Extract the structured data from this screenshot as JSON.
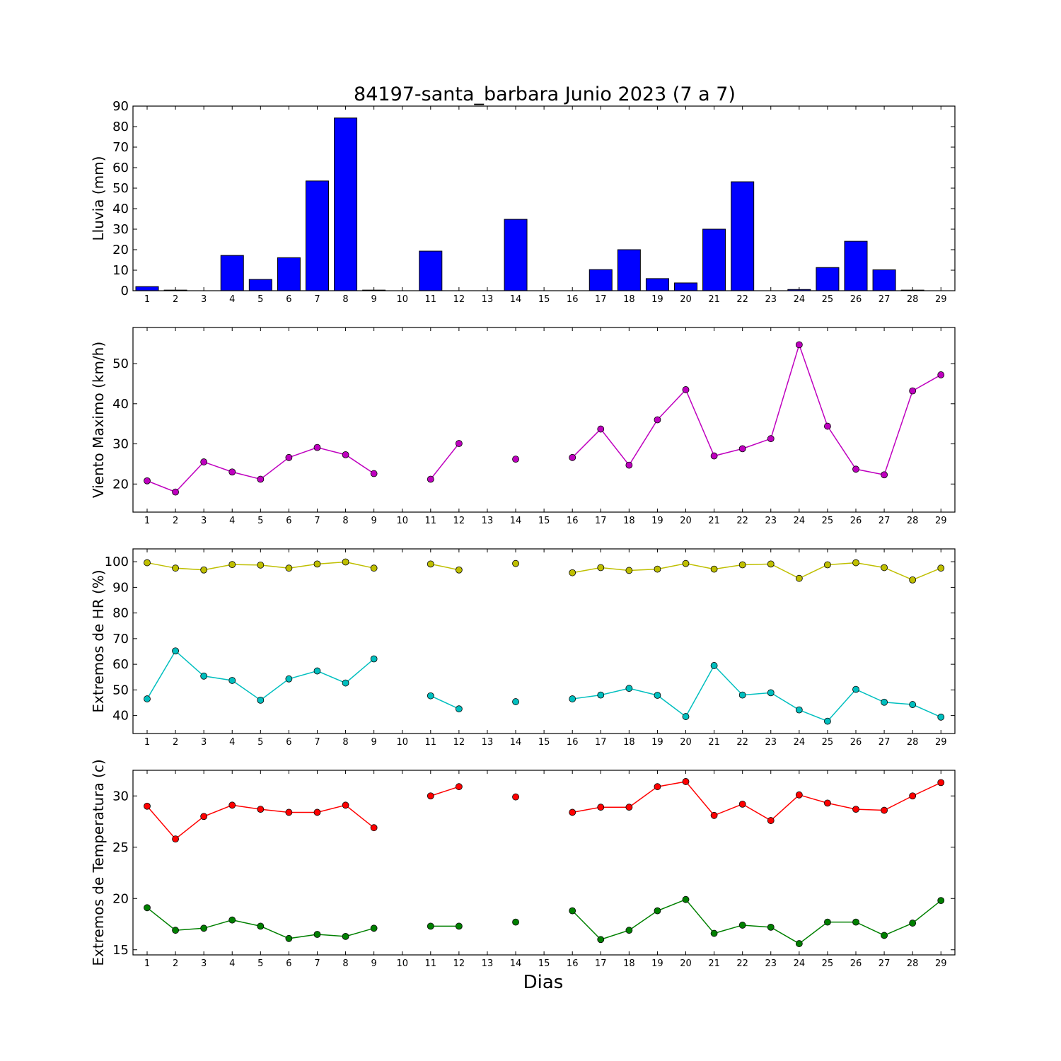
{
  "chart_data": [
    {
      "type": "bar",
      "title": "84197-santa_barbara Junio 2023  (7 a 7)",
      "ylabel": "Lluvia (mm)",
      "xlabel": "",
      "ylim": [
        0,
        90
      ],
      "yticks": [
        0,
        10,
        20,
        30,
        40,
        50,
        60,
        70,
        80,
        90
      ],
      "categories": [
        "1",
        "2",
        "3",
        "4",
        "5",
        "6",
        "7",
        "8",
        "9",
        "10",
        "11",
        "12",
        "13",
        "14",
        "15",
        "16",
        "17",
        "18",
        "19",
        "20",
        "21",
        "22",
        "23",
        "24",
        "25",
        "26",
        "27",
        "28",
        "29"
      ],
      "values": [
        2.0,
        0.3,
        0,
        17.2,
        5.5,
        16.1,
        53.5,
        84.2,
        0.3,
        0,
        19.3,
        0,
        0,
        34.8,
        0,
        0,
        10.3,
        20.0,
        5.9,
        3.8,
        30.0,
        53.1,
        0,
        0.6,
        11.3,
        24.1,
        10.2,
        0.3,
        0
      ],
      "colors": {
        "bar": "#0000ff"
      }
    },
    {
      "type": "line",
      "ylabel": "Viento Maximo (km/h)",
      "ylim": [
        13,
        59
      ],
      "yticks": [
        20,
        30,
        40,
        50
      ],
      "x": [
        1,
        2,
        3,
        4,
        5,
        6,
        7,
        8,
        9,
        10,
        11,
        12,
        13,
        14,
        15,
        16,
        17,
        18,
        19,
        20,
        21,
        22,
        23,
        24,
        25,
        26,
        27,
        28,
        29
      ],
      "series": [
        {
          "values": [
            20.8,
            18.0,
            25.5,
            23.0,
            21.2,
            26.6,
            29.1,
            27.3,
            22.6,
            null,
            21.2,
            30.1,
            null,
            26.2,
            null,
            26.6,
            33.7,
            24.7,
            36.0,
            43.5,
            27.0,
            28.8,
            31.3,
            54.7,
            34.4,
            23.7,
            22.3,
            43.2,
            47.2
          ],
          "color": "#bf00bf"
        }
      ]
    },
    {
      "type": "line",
      "ylabel": "Extremos de HR (%)",
      "ylim": [
        33,
        105
      ],
      "yticks": [
        40,
        50,
        60,
        70,
        80,
        90,
        100
      ],
      "x": [
        1,
        2,
        3,
        4,
        5,
        6,
        7,
        8,
        9,
        10,
        11,
        12,
        13,
        14,
        15,
        16,
        17,
        18,
        19,
        20,
        21,
        22,
        23,
        24,
        25,
        26,
        27,
        28,
        29
      ],
      "series": [
        {
          "values": [
            99.6,
            97.5,
            96.8,
            98.9,
            98.7,
            97.5,
            99.1,
            99.9,
            97.5,
            null,
            99.1,
            96.8,
            null,
            99.3,
            null,
            95.7,
            97.7,
            96.6,
            97.1,
            99.3,
            97.1,
            98.8,
            99.1,
            93.5,
            98.8,
            99.6,
            97.7,
            92.9,
            97.5
          ],
          "color": "#bfbf00"
        },
        {
          "values": [
            46.5,
            65.2,
            55.4,
            53.7,
            46.0,
            54.3,
            57.4,
            52.7,
            62.1,
            null,
            47.7,
            42.6,
            null,
            45.4,
            null,
            46.5,
            48.0,
            50.6,
            47.9,
            39.6,
            59.5,
            48.0,
            48.9,
            42.2,
            37.8,
            50.2,
            45.2,
            44.3,
            39.4
          ],
          "color": "#00bfbf"
        }
      ]
    },
    {
      "type": "line",
      "ylabel": "Extremos de Temperatura (c)",
      "xlabel": "Dias",
      "ylim": [
        14.5,
        32.5
      ],
      "yticks": [
        15,
        20,
        25,
        30
      ],
      "x": [
        1,
        2,
        3,
        4,
        5,
        6,
        7,
        8,
        9,
        10,
        11,
        12,
        13,
        14,
        15,
        16,
        17,
        18,
        19,
        20,
        21,
        22,
        23,
        24,
        25,
        26,
        27,
        28,
        29
      ],
      "series": [
        {
          "values": [
            29.0,
            25.8,
            28.0,
            29.1,
            28.7,
            28.4,
            28.4,
            29.1,
            26.9,
            null,
            30.0,
            30.9,
            null,
            29.9,
            null,
            28.4,
            28.9,
            28.9,
            30.9,
            31.4,
            28.1,
            29.2,
            27.6,
            30.1,
            29.3,
            28.7,
            28.6,
            30.0,
            31.3
          ],
          "color": "#ff0000"
        },
        {
          "values": [
            19.1,
            16.9,
            17.1,
            17.9,
            17.3,
            16.1,
            16.5,
            16.3,
            17.1,
            null,
            17.3,
            17.3,
            null,
            17.7,
            null,
            18.8,
            16.0,
            16.9,
            18.8,
            19.9,
            16.6,
            17.4,
            17.2,
            15.6,
            17.7,
            17.7,
            16.4,
            17.6,
            19.8
          ],
          "color": "#008000"
        }
      ]
    }
  ]
}
